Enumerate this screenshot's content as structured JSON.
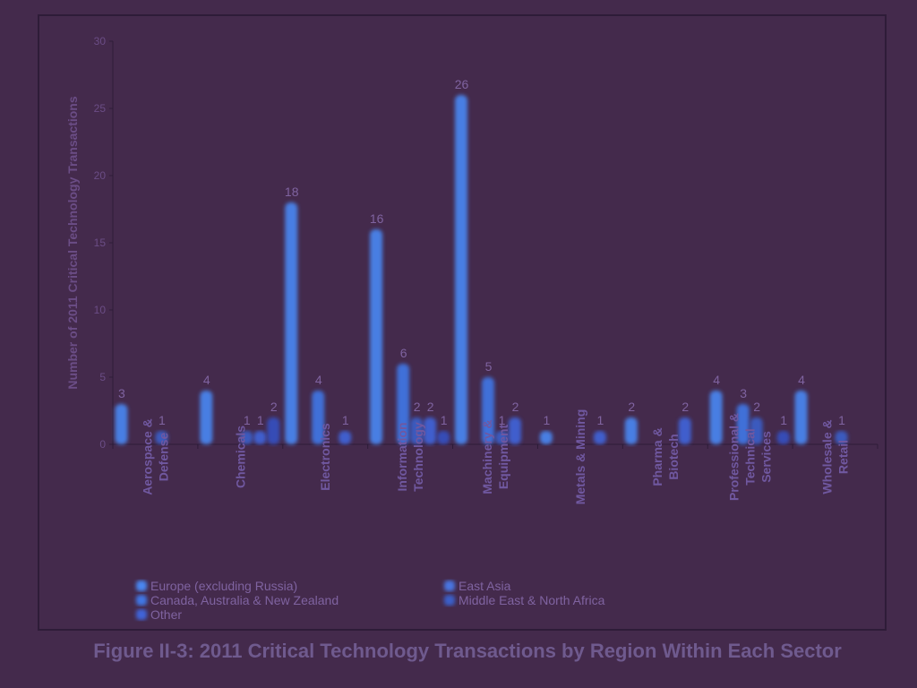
{
  "chart_data": {
    "type": "bar",
    "ylabel": "Number of 2011 Critical Technology Transactions",
    "ylim": [
      0,
      30
    ],
    "yticks": [
      0,
      5,
      10,
      15,
      20,
      25,
      30
    ],
    "categories": [
      [
        "Aerospace &",
        "Defense"
      ],
      [
        "Chemicals"
      ],
      [
        "Electronics"
      ],
      [
        "Information",
        "Technology"
      ],
      [
        "Machinery &",
        "Equipment"
      ],
      [
        "Metals & Mining"
      ],
      [
        "Pharma &",
        "Biotech"
      ],
      [
        "Professional &",
        "Technical",
        "Services"
      ],
      [
        "Wholesale &",
        "Retail"
      ]
    ],
    "series": [
      {
        "name": "Europe (excluding Russia)",
        "color": "#4a86f0",
        "values": [
          3,
          4,
          18,
          16,
          26,
          1,
          2,
          4,
          4
        ]
      },
      {
        "name": "East Asia",
        "color": "#4a74e0",
        "values": [
          0,
          0,
          0,
          0,
          0,
          0,
          0,
          0,
          0
        ]
      },
      {
        "name": "Canada, Australia & New Zealand",
        "color": "#3f76e4",
        "values": [
          0,
          0,
          4,
          6,
          5,
          0,
          0,
          3,
          0
        ]
      },
      {
        "name": "Middle East & North Africa",
        "color": "#3a5fc8",
        "values": [
          1,
          1,
          0,
          2,
          1,
          0,
          0,
          2,
          1
        ]
      },
      {
        "name": "Other",
        "color": "#3f64d8",
        "values": [
          0,
          1,
          1,
          2,
          2,
          1,
          2,
          0,
          0
        ]
      },
      {
        "name": "",
        "color": "#3550c0",
        "values": [
          0,
          2,
          0,
          1,
          0,
          0,
          0,
          1,
          0
        ]
      }
    ],
    "legend": [
      "Europe (excluding Russia)",
      "East Asia",
      "Canada, Australia & New  Zealand",
      "Middle East & North Africa",
      "Other"
    ],
    "grid": false,
    "legend_position": "bottom"
  },
  "caption": "Figure II-3: 2011 Critical Technology Transactions by Region Within Each Sector"
}
